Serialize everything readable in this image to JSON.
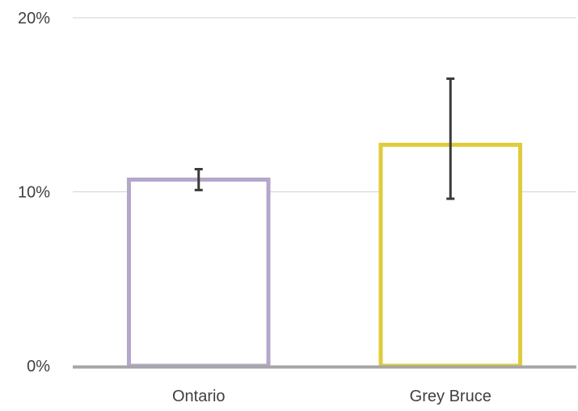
{
  "chart_data": {
    "type": "bar",
    "title": "",
    "xlabel": "",
    "ylabel": "",
    "categories": [
      "Ontario",
      "Grey Bruce"
    ],
    "values": [
      10.7,
      12.7
    ],
    "error_low": [
      10.1,
      9.6
    ],
    "error_high": [
      11.3,
      16.5
    ],
    "ylim": [
      0,
      20
    ],
    "yticks": [
      0,
      10,
      20
    ],
    "ytick_labels": [
      "0%",
      "10%",
      "20%"
    ],
    "grid": true,
    "legend": "none",
    "bar_style": "outline",
    "colors": {
      "bars": [
        "#b4a7c9",
        "#dfcc3c"
      ],
      "error_bar": "#3a3a3a",
      "grid": "#d9d9d9",
      "axis": "#a6a6a6",
      "text": "#404040"
    }
  }
}
